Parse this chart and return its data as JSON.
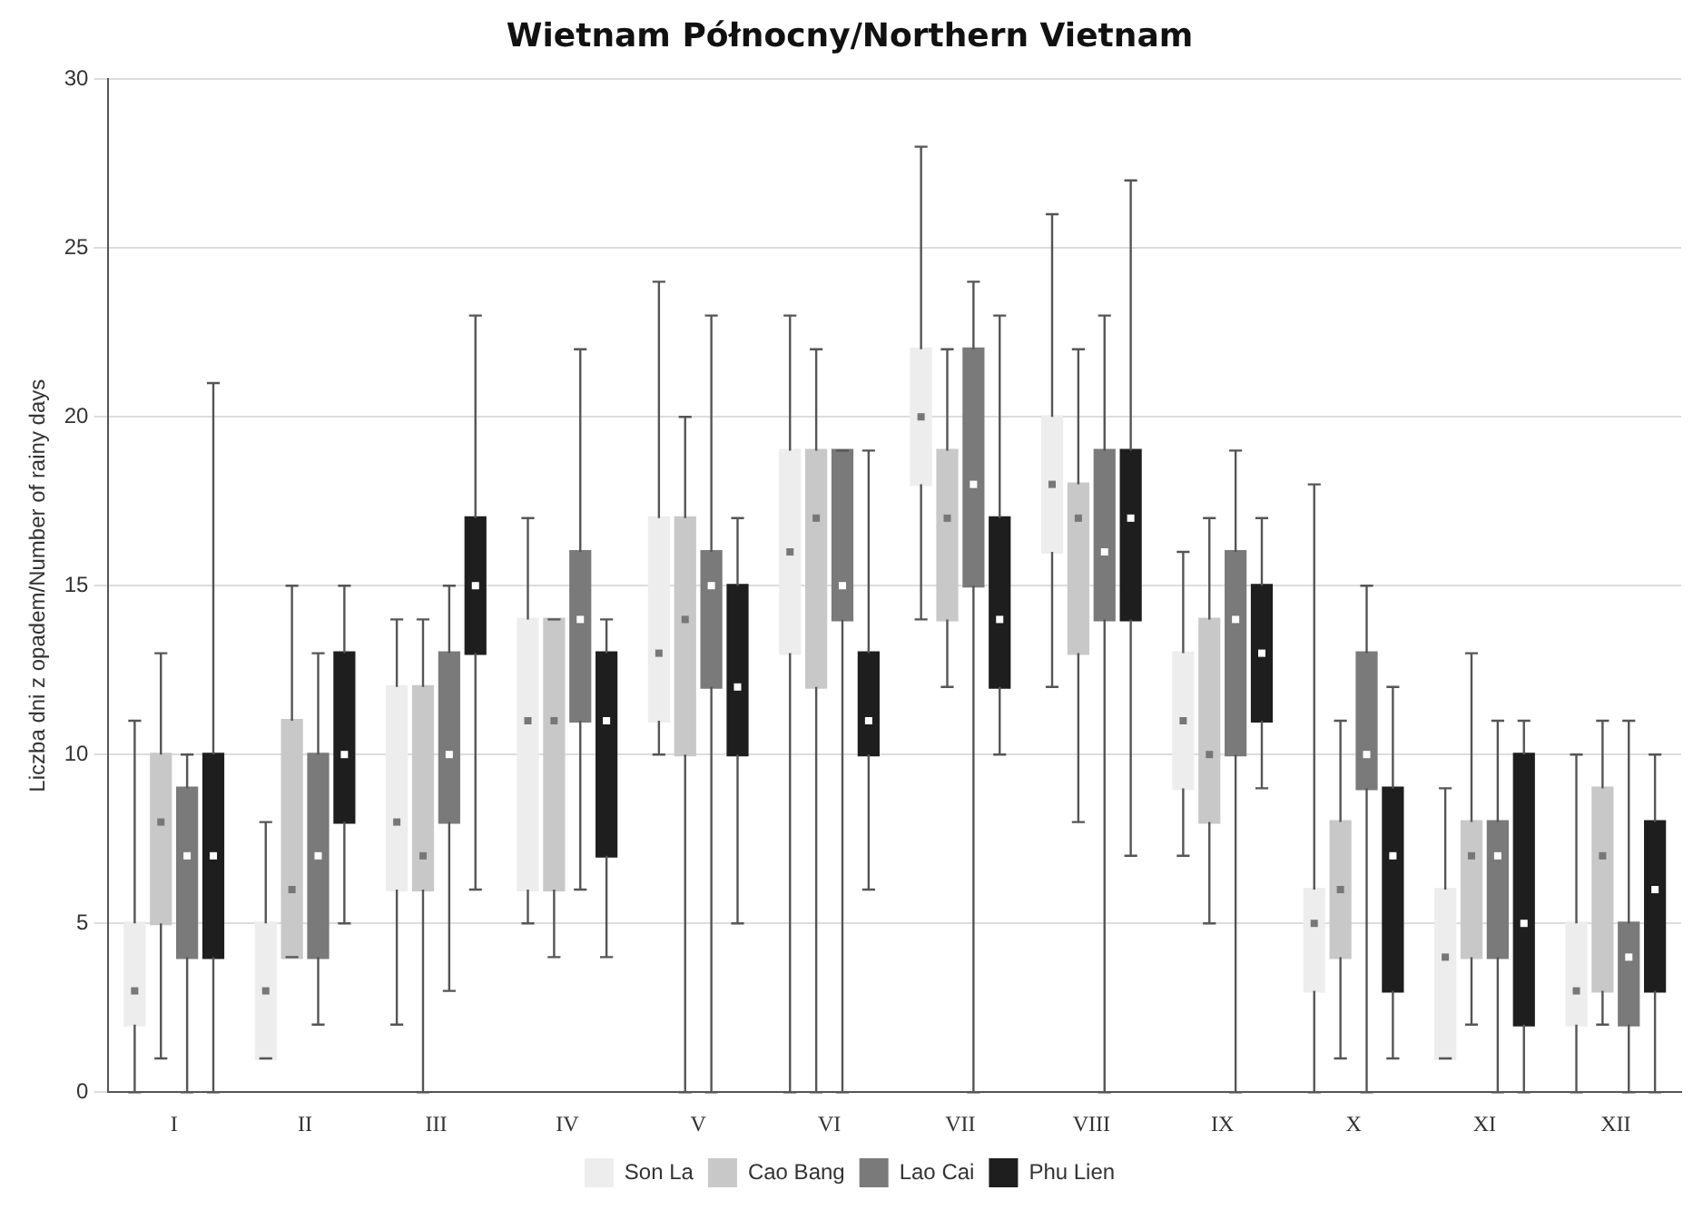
{
  "chart_data": {
    "type": "box",
    "title": "Wietnam Północny/Northern Vietnam",
    "ylabel": "Liczba dni z opadem/Number of rainy days",
    "categories": [
      "I",
      "II",
      "III",
      "IV",
      "V",
      "VI",
      "VII",
      "VIII",
      "IX",
      "X",
      "XI",
      "XII"
    ],
    "ylim": [
      0,
      30
    ],
    "yticks": [
      0,
      5,
      10,
      15,
      20,
      25,
      30
    ],
    "grid": "y",
    "legend": "bottom",
    "series": [
      {
        "name": "Son La",
        "color": "#ededed",
        "boxes": [
          {
            "low": 0,
            "q1": 2,
            "median": 3,
            "q3": 5,
            "high": 11
          },
          {
            "low": 1,
            "q1": 1,
            "median": 3,
            "q3": 5,
            "high": 8
          },
          {
            "low": 2,
            "q1": 6,
            "median": 8,
            "q3": 12,
            "high": 14
          },
          {
            "low": 5,
            "q1": 6,
            "median": 11,
            "q3": 14,
            "high": 17
          },
          {
            "low": 10,
            "q1": 11,
            "median": 13,
            "q3": 17,
            "high": 24
          },
          {
            "low": 0,
            "q1": 13,
            "median": 16,
            "q3": 19,
            "high": 23
          },
          {
            "low": 14,
            "q1": 18,
            "median": 20,
            "q3": 22,
            "high": 28
          },
          {
            "low": 12,
            "q1": 16,
            "median": 18,
            "q3": 20,
            "high": 26
          },
          {
            "low": 7,
            "q1": 9,
            "median": 11,
            "q3": 13,
            "high": 16
          },
          {
            "low": 0,
            "q1": 3,
            "median": 5,
            "q3": 6,
            "high": 18
          },
          {
            "low": 1,
            "q1": 1,
            "median": 4,
            "q3": 6,
            "high": 9
          },
          {
            "low": 0,
            "q1": 2,
            "median": 3,
            "q3": 5,
            "high": 10
          }
        ]
      },
      {
        "name": "Cao Bang",
        "color": "#c8c8c8",
        "boxes": [
          {
            "low": 1,
            "q1": 5,
            "median": 8,
            "q3": 10,
            "high": 13
          },
          {
            "low": 4,
            "q1": 4,
            "median": 6,
            "q3": 11,
            "high": 15
          },
          {
            "low": 0,
            "q1": 6,
            "median": 7,
            "q3": 12,
            "high": 14
          },
          {
            "low": 4,
            "q1": 6,
            "median": 11,
            "q3": 14,
            "high": 14
          },
          {
            "low": 0,
            "q1": 10,
            "median": 14,
            "q3": 17,
            "high": 20
          },
          {
            "low": 0,
            "q1": 12,
            "median": 17,
            "q3": 19,
            "high": 22
          },
          {
            "low": 12,
            "q1": 14,
            "median": 17,
            "q3": 19,
            "high": 22
          },
          {
            "low": 8,
            "q1": 13,
            "median": 17,
            "q3": 18,
            "high": 22
          },
          {
            "low": 5,
            "q1": 8,
            "median": 10,
            "q3": 14,
            "high": 17
          },
          {
            "low": 1,
            "q1": 4,
            "median": 6,
            "q3": 8,
            "high": 11
          },
          {
            "low": 2,
            "q1": 4,
            "median": 7,
            "q3": 8,
            "high": 13
          },
          {
            "low": 2,
            "q1": 3,
            "median": 7,
            "q3": 9,
            "high": 11
          }
        ]
      },
      {
        "name": "Lao Cai",
        "color": "#7a7a7a",
        "boxes": [
          {
            "low": 0,
            "q1": 4,
            "median": 7,
            "q3": 9,
            "high": 10
          },
          {
            "low": 2,
            "q1": 4,
            "median": 7,
            "q3": 10,
            "high": 13
          },
          {
            "low": 3,
            "q1": 8,
            "median": 10,
            "q3": 13,
            "high": 15
          },
          {
            "low": 6,
            "q1": 11,
            "median": 14,
            "q3": 16,
            "high": 22
          },
          {
            "low": 0,
            "q1": 12,
            "median": 15,
            "q3": 16,
            "high": 23
          },
          {
            "low": 0,
            "q1": 14,
            "median": 15,
            "q3": 19,
            "high": 19
          },
          {
            "low": 0,
            "q1": 15,
            "median": 18,
            "q3": 22,
            "high": 24
          },
          {
            "low": 0,
            "q1": 14,
            "median": 16,
            "q3": 19,
            "high": 23
          },
          {
            "low": 0,
            "q1": 10,
            "median": 14,
            "q3": 16,
            "high": 19
          },
          {
            "low": 0,
            "q1": 9,
            "median": 10,
            "q3": 13,
            "high": 15
          },
          {
            "low": 0,
            "q1": 4,
            "median": 7,
            "q3": 8,
            "high": 11
          },
          {
            "low": 0,
            "q1": 2,
            "median": 4,
            "q3": 5,
            "high": 11
          }
        ]
      },
      {
        "name": "Phu Lien",
        "color": "#1e1e1e",
        "boxes": [
          {
            "low": 0,
            "q1": 4,
            "median": 7,
            "q3": 10,
            "high": 21
          },
          {
            "low": 5,
            "q1": 8,
            "median": 10,
            "q3": 13,
            "high": 15
          },
          {
            "low": 6,
            "q1": 13,
            "median": 15,
            "q3": 17,
            "high": 23
          },
          {
            "low": 4,
            "q1": 7,
            "median": 11,
            "q3": 13,
            "high": 14
          },
          {
            "low": 5,
            "q1": 10,
            "median": 12,
            "q3": 15,
            "high": 17
          },
          {
            "low": 6,
            "q1": 10,
            "median": 11,
            "q3": 13,
            "high": 19
          },
          {
            "low": 10,
            "q1": 12,
            "median": 14,
            "q3": 17,
            "high": 23
          },
          {
            "low": 7,
            "q1": 14,
            "median": 17,
            "q3": 19,
            "high": 27
          },
          {
            "low": 9,
            "q1": 11,
            "median": 13,
            "q3": 15,
            "high": 17
          },
          {
            "low": 1,
            "q1": 3,
            "median": 7,
            "q3": 9,
            "high": 12
          },
          {
            "low": 0,
            "q1": 2,
            "median": 5,
            "q3": 10,
            "high": 11
          },
          {
            "low": 0,
            "q1": 3,
            "median": 6,
            "q3": 8,
            "high": 10
          }
        ]
      }
    ]
  }
}
